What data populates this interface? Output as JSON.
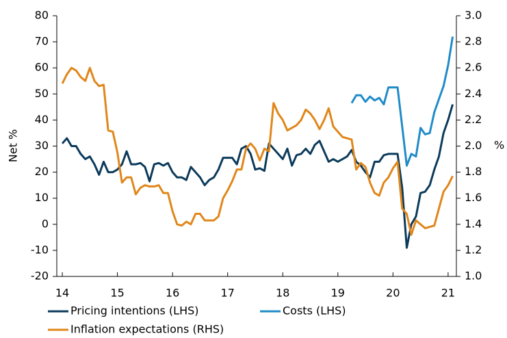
{
  "chart_data": {
    "type": "line",
    "y_label": "Net %",
    "y2_label": "%",
    "x": [
      14,
      14.083,
      14.167,
      14.25,
      14.333,
      14.417,
      14.5,
      14.583,
      14.667,
      14.75,
      14.833,
      14.917,
      15,
      15.083,
      15.167,
      15.25,
      15.333,
      15.417,
      15.5,
      15.583,
      15.667,
      15.75,
      15.833,
      15.917,
      16,
      16.083,
      16.167,
      16.25,
      16.333,
      16.417,
      16.5,
      16.583,
      16.667,
      16.75,
      16.833,
      16.917,
      17,
      17.083,
      17.167,
      17.25,
      17.333,
      17.417,
      17.5,
      17.583,
      17.667,
      17.75,
      17.833,
      17.917,
      18,
      18.083,
      18.167,
      18.25,
      18.333,
      18.417,
      18.5,
      18.583,
      18.667,
      18.75,
      18.833,
      18.917,
      19,
      19.083,
      19.167,
      19.25,
      19.333,
      19.417,
      19.5,
      19.583,
      19.667,
      19.75,
      19.833,
      19.917,
      20,
      20.083,
      20.167,
      20.25,
      20.333,
      20.417,
      20.5,
      20.583,
      20.667,
      20.75,
      20.833,
      20.917,
      21,
      21.083
    ],
    "series": [
      {
        "name": "Pricing intentions (LHS)",
        "color": "#0b3a5b",
        "axis": "y",
        "values": [
          31,
          33,
          30,
          30,
          27,
          25,
          26,
          23,
          19,
          24,
          20,
          20,
          21,
          23,
          28,
          23,
          23,
          23.5,
          22,
          16.5,
          23,
          23.5,
          22.5,
          23.5,
          20,
          18,
          18,
          17,
          22,
          20,
          18,
          15,
          17,
          18,
          21,
          25.5,
          25.5,
          25.5,
          23,
          29,
          30,
          27,
          21,
          21.5,
          20.5,
          31,
          29,
          27,
          25,
          29,
          22.5,
          26.5,
          27,
          29,
          27,
          30.5,
          32,
          28,
          24,
          25,
          24,
          25,
          26,
          28.5,
          24,
          22.5,
          20,
          18,
          24,
          24,
          26.5,
          27,
          27,
          27,
          14,
          -9,
          0,
          3,
          12,
          12.5,
          15,
          21,
          26,
          35,
          40,
          46
        ]
      },
      {
        "name": "Costs (LHS)",
        "color": "#1f8bc9",
        "axis": "y",
        "values": [
          null,
          null,
          null,
          null,
          null,
          null,
          null,
          null,
          null,
          null,
          null,
          null,
          null,
          null,
          null,
          null,
          null,
          null,
          null,
          null,
          null,
          null,
          null,
          null,
          null,
          null,
          null,
          null,
          null,
          null,
          null,
          null,
          null,
          null,
          null,
          null,
          null,
          null,
          null,
          null,
          null,
          null,
          null,
          null,
          null,
          null,
          null,
          null,
          null,
          null,
          null,
          null,
          null,
          null,
          null,
          null,
          null,
          null,
          null,
          null,
          null,
          null,
          null,
          46.5,
          49.5,
          49.5,
          47,
          49,
          47.5,
          48.5,
          46,
          52.5,
          52.5,
          52.5,
          37.5,
          22.5,
          27,
          26,
          37,
          34.5,
          35,
          43,
          48,
          53,
          61,
          72
        ]
      },
      {
        "name": "Inflation expectations (RHS)",
        "color": "#e0861a",
        "axis": "y2",
        "values": [
          2.48,
          2.55,
          2.6,
          2.58,
          2.53,
          2.5,
          2.6,
          2.5,
          2.46,
          2.47,
          2.12,
          2.11,
          1.95,
          1.72,
          1.76,
          1.76,
          1.63,
          1.68,
          1.7,
          1.69,
          1.69,
          1.7,
          1.64,
          1.64,
          1.5,
          1.4,
          1.39,
          1.42,
          1.4,
          1.48,
          1.48,
          1.43,
          1.43,
          1.43,
          1.46,
          1.6,
          1.66,
          1.73,
          1.82,
          1.82,
          1.98,
          2.02,
          1.98,
          1.89,
          1.98,
          1.96,
          2.33,
          2.25,
          2.2,
          2.12,
          2.14,
          2.16,
          2.2,
          2.28,
          2.25,
          2.2,
          2.13,
          2.2,
          2.29,
          2.15,
          2.11,
          2.07,
          2.06,
          2.05,
          1.82,
          1.87,
          1.84,
          1.72,
          1.64,
          1.62,
          1.72,
          1.76,
          1.83,
          1.88,
          1.52,
          1.48,
          1.32,
          1.43,
          1.4,
          1.37,
          1.38,
          1.39,
          1.52,
          1.65,
          1.7,
          1.77
        ]
      }
    ],
    "xlim": [
      13.9,
      21.15
    ],
    "xticks": [
      14,
      15,
      16,
      17,
      18,
      19,
      20,
      21
    ],
    "ylim": [
      -20,
      80
    ],
    "yticks": [
      -20,
      -10,
      0,
      10,
      20,
      30,
      40,
      50,
      60,
      70,
      80
    ],
    "y2lim": [
      1,
      3
    ],
    "y2ticks": [
      {
        "value": 1,
        "label": "1.0"
      },
      {
        "value": 1.2,
        "label": "1.2"
      },
      {
        "value": 1.4,
        "label": "1.4"
      },
      {
        "value": 1.6,
        "label": "1.6"
      },
      {
        "value": 1.8,
        "label": "1.8"
      },
      {
        "value": 2,
        "label": "2.0"
      },
      {
        "value": 2.2,
        "label": "2.2"
      },
      {
        "value": 2.4,
        "label": "2.4"
      },
      {
        "value": 2.6,
        "label": "2.6"
      },
      {
        "value": 2.8,
        "label": "2.8"
      },
      {
        "value": 3,
        "label": "3.0"
      }
    ]
  }
}
